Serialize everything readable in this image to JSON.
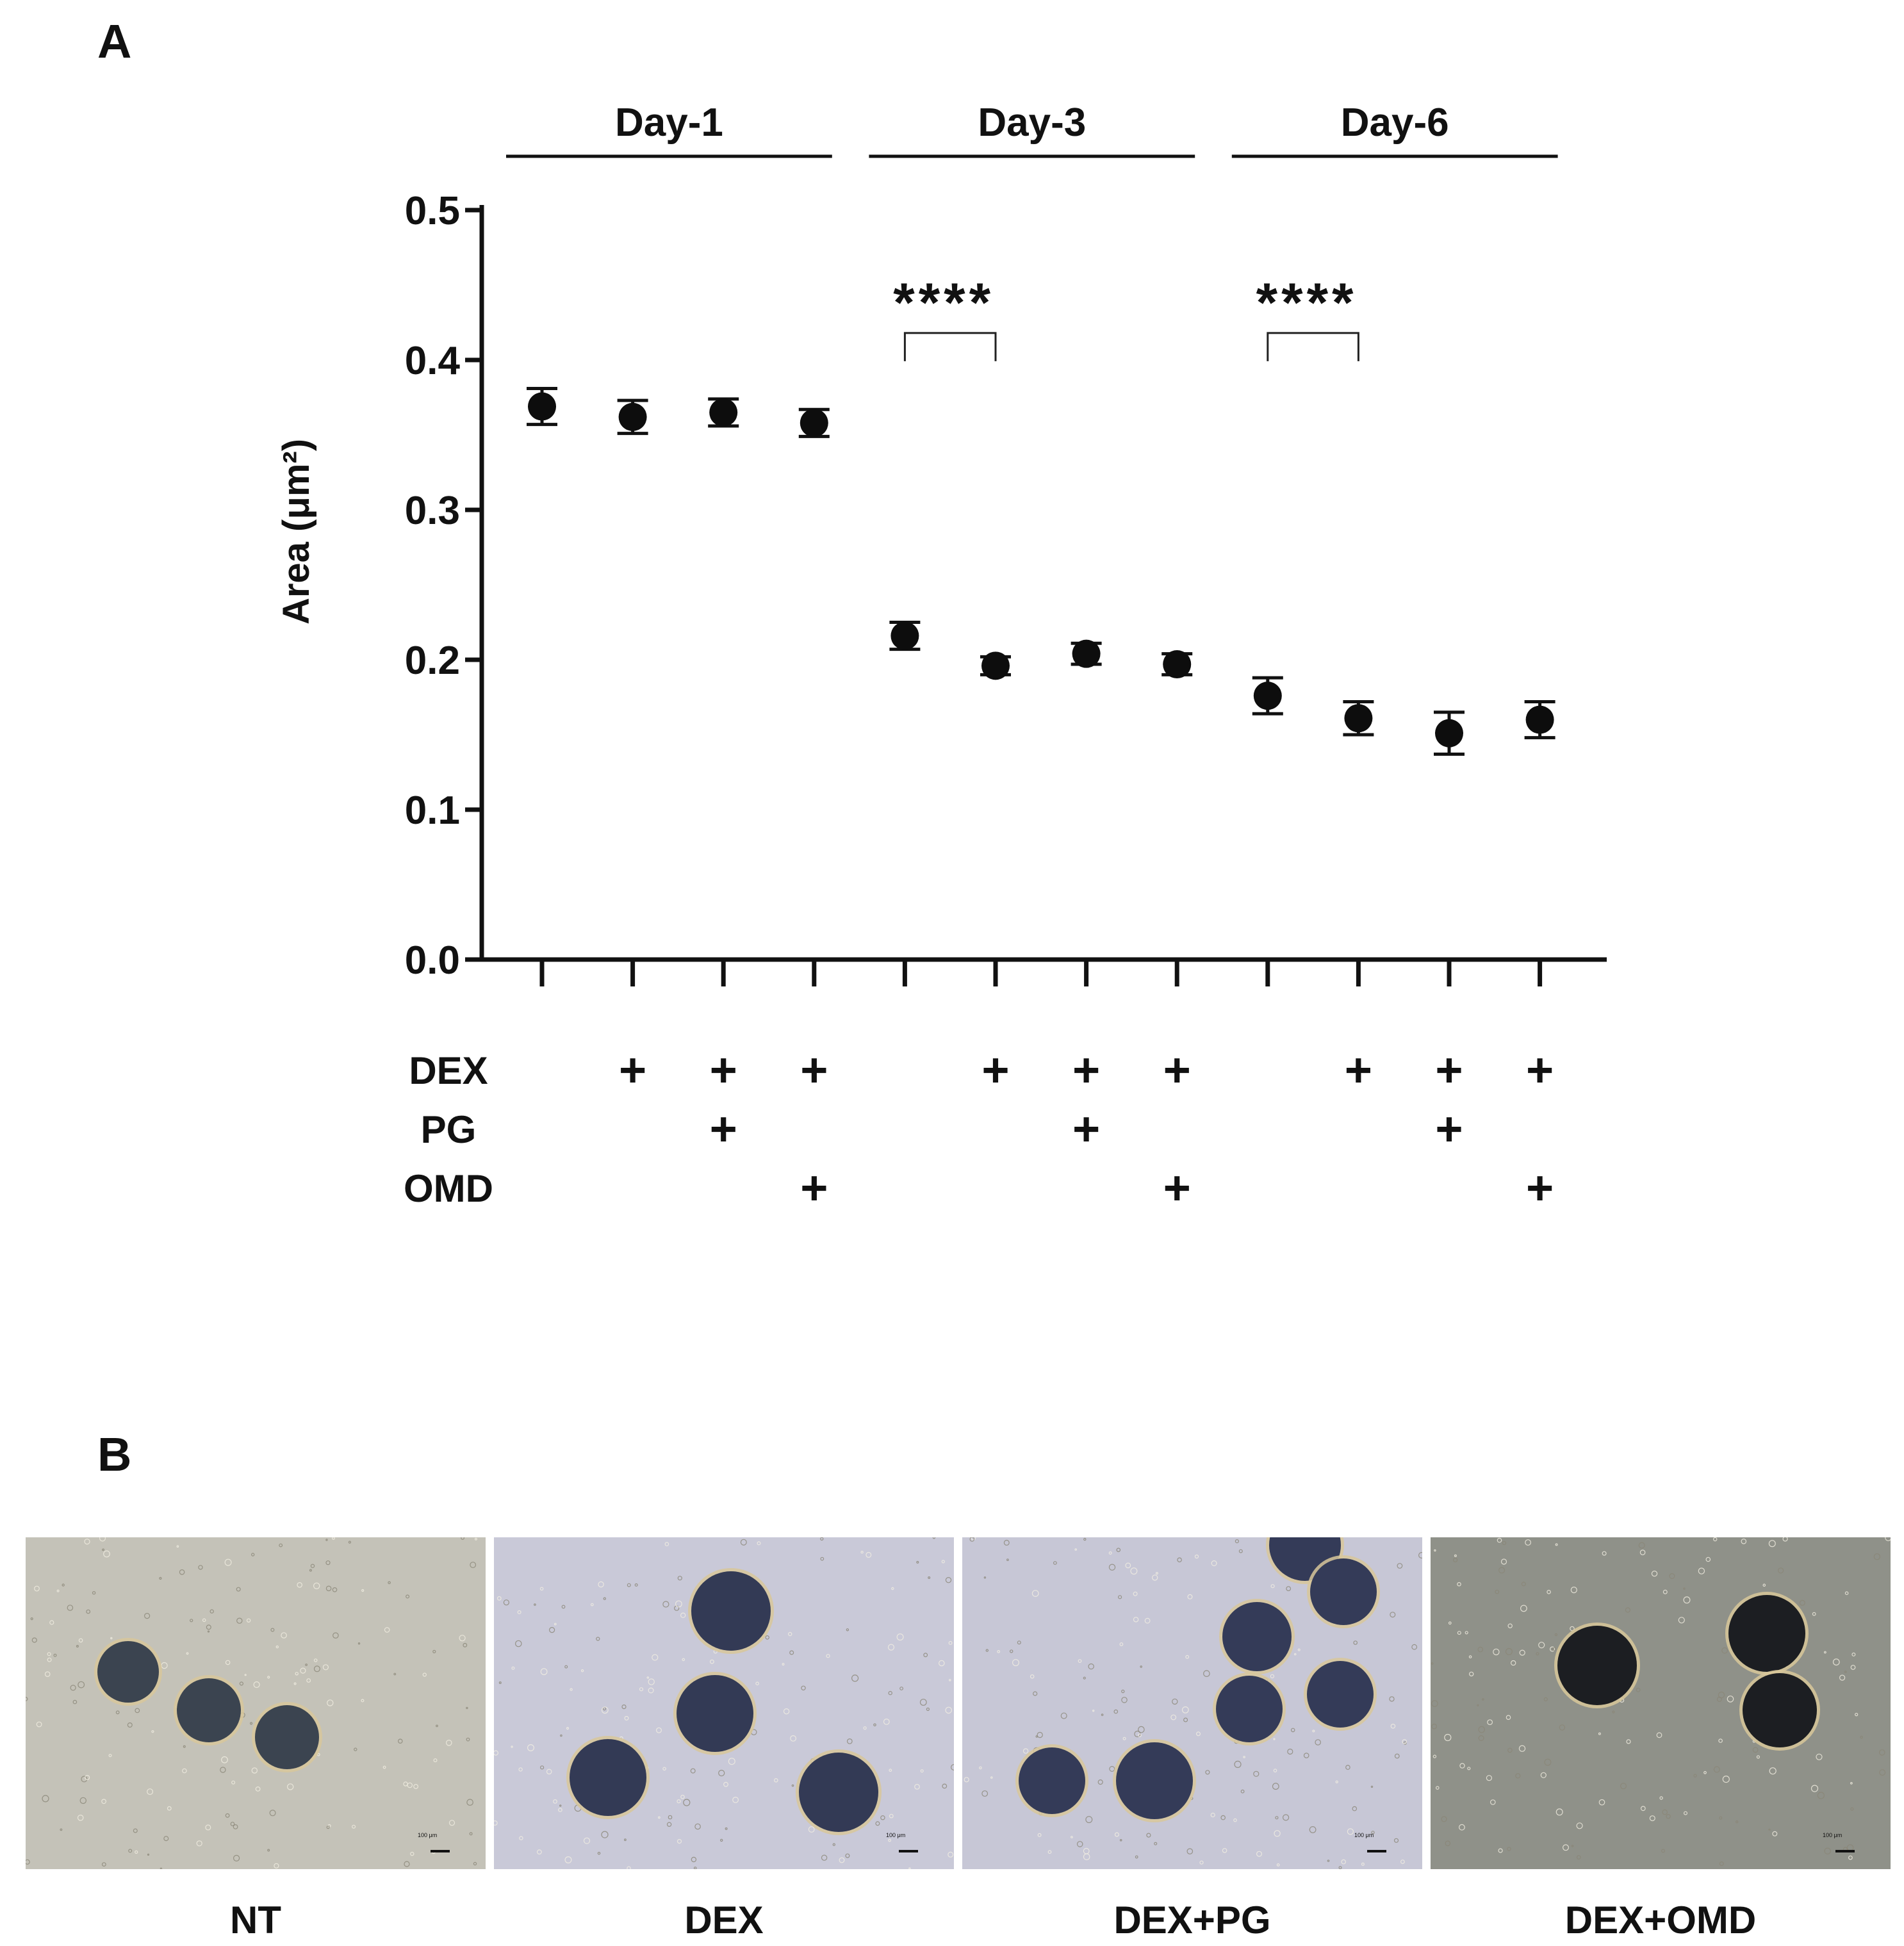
{
  "panels": {
    "a_label": "A",
    "b_label": "B"
  },
  "chart_data": {
    "type": "scatter",
    "ylabel": "Area (μm²)",
    "ylim": [
      0,
      0.5
    ],
    "yticks": [
      "0.0",
      "0.1",
      "0.2",
      "0.3",
      "0.4",
      "0.5"
    ],
    "groups": [
      {
        "label": "Day-1",
        "members": [
          0,
          1,
          2,
          3
        ]
      },
      {
        "label": "Day-3",
        "members": [
          4,
          5,
          6,
          7
        ]
      },
      {
        "label": "Day-6",
        "members": [
          8,
          9,
          10,
          11
        ]
      }
    ],
    "points": [
      {
        "day": "Day-1",
        "y": 0.369,
        "err": 0.012
      },
      {
        "day": "Day-1",
        "y": 0.362,
        "err": 0.011
      },
      {
        "day": "Day-1",
        "y": 0.365,
        "err": 0.009
      },
      {
        "day": "Day-1",
        "y": 0.358,
        "err": 0.009
      },
      {
        "day": "Day-3",
        "y": 0.216,
        "err": 0.009
      },
      {
        "day": "Day-3",
        "y": 0.196,
        "err": 0.006
      },
      {
        "day": "Day-3",
        "y": 0.204,
        "err": 0.007
      },
      {
        "day": "Day-3",
        "y": 0.197,
        "err": 0.007
      },
      {
        "day": "Day-6",
        "y": 0.176,
        "err": 0.012
      },
      {
        "day": "Day-6",
        "y": 0.161,
        "err": 0.011
      },
      {
        "day": "Day-6",
        "y": 0.151,
        "err": 0.014
      },
      {
        "day": "Day-6",
        "y": 0.16,
        "err": 0.012
      }
    ],
    "significance": [
      {
        "from": 4,
        "to": 5,
        "label": "****",
        "y": 0.418
      },
      {
        "from": 8,
        "to": 9,
        "label": "****",
        "y": 0.418
      }
    ],
    "treatments": {
      "rows": [
        "DEX",
        "PG",
        "OMD"
      ],
      "marker": "+",
      "matrix": [
        [
          0,
          1,
          1,
          1,
          0,
          1,
          1,
          1,
          0,
          1,
          1,
          1
        ],
        [
          0,
          0,
          1,
          0,
          0,
          0,
          1,
          0,
          0,
          0,
          1,
          0
        ],
        [
          0,
          0,
          0,
          1,
          0,
          0,
          0,
          1,
          0,
          0,
          0,
          1
        ]
      ]
    }
  },
  "micrographs": [
    {
      "label": "NT",
      "scale": "100 μm",
      "bg": "#c4c2b8",
      "tone": "#3b4450"
    },
    {
      "label": "DEX",
      "scale": "100 μm",
      "bg": "#c9c9d8",
      "tone": "#333a55"
    },
    {
      "label": "DEX+PG",
      "scale": "100 μm",
      "bg": "#c7c7d6",
      "tone": "#343b58"
    },
    {
      "label": "DEX+OMD",
      "scale": "100 μm",
      "bg": "#8f9189",
      "tone": "#1c1e22"
    }
  ]
}
